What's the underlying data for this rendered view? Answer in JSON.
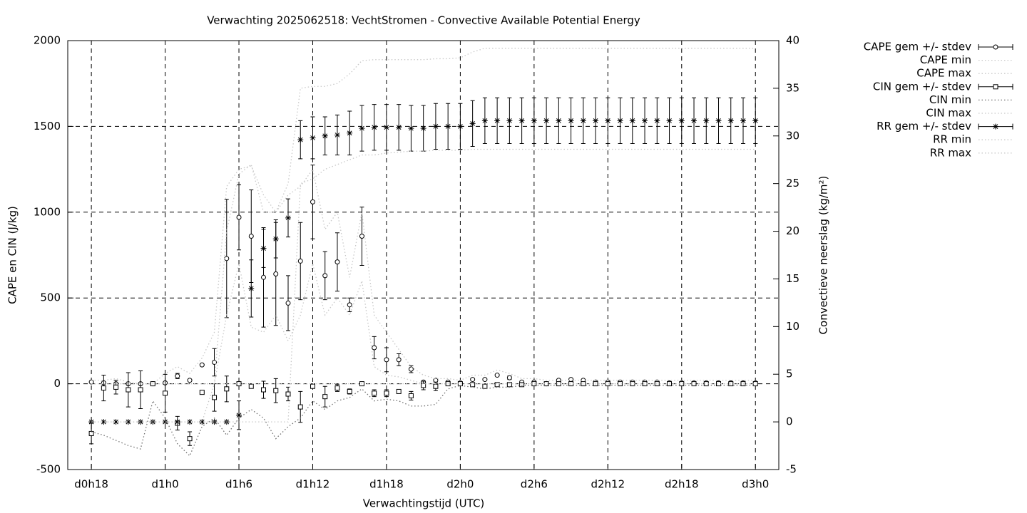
{
  "chart_data": {
    "type": "errorbar",
    "title": "Verwachting 2025062518: VechtStromen - Convective Available Potential Energy",
    "xlabel": "Verwachtingstijd (UTC)",
    "ylabel": "CAPE en CIN (J/kg)",
    "y2label": "Convectieve neerslag (kg/m²)",
    "x": [
      18,
      19,
      20,
      21,
      22,
      23,
      24,
      25,
      26,
      27,
      28,
      29,
      30,
      31,
      32,
      33,
      34,
      35,
      36,
      37,
      38,
      39,
      40,
      41,
      42,
      43,
      44,
      45,
      46,
      47,
      48,
      49,
      50,
      51,
      52,
      53,
      54,
      55,
      56,
      57,
      58,
      59,
      60,
      61,
      62,
      63,
      64,
      65,
      66,
      67,
      68,
      69,
      70,
      71,
      72
    ],
    "xlim": [
      16.08,
      73.9
    ],
    "xticks": [
      {
        "value": 18,
        "label": "d0h18"
      },
      {
        "value": 24,
        "label": "d1h0"
      },
      {
        "value": 30,
        "label": "d1h6"
      },
      {
        "value": 36,
        "label": "d1h12"
      },
      {
        "value": 42,
        "label": "d1h18"
      },
      {
        "value": 48,
        "label": "d2h0"
      },
      {
        "value": 54,
        "label": "d2h6"
      },
      {
        "value": 60,
        "label": "d2h12"
      },
      {
        "value": 66,
        "label": "d2h18"
      },
      {
        "value": 72,
        "label": "d3h0"
      }
    ],
    "ylim": [
      -500,
      2000
    ],
    "yticks": [
      -500,
      0,
      500,
      1000,
      1500,
      2000
    ],
    "y2lim": [
      -5,
      40
    ],
    "y2ticks": [
      -5,
      0,
      5,
      10,
      15,
      20,
      25,
      30,
      35,
      40
    ],
    "grid": true,
    "legend": "top-right",
    "series": [
      {
        "name": "CAPE gem +/- stdev",
        "style": "circle",
        "color": "#000000",
        "values": [
          10,
          5,
          0,
          0,
          0,
          0,
          5,
          45,
          20,
          110,
          125,
          730,
          970,
          860,
          620,
          640,
          470,
          715,
          1060,
          630,
          710,
          460,
          860,
          210,
          140,
          140,
          85,
          10,
          20,
          10,
          5,
          25,
          25,
          50,
          35,
          10,
          10,
          0,
          20,
          25,
          20,
          10,
          10,
          10,
          10,
          10,
          10,
          5,
          5,
          5,
          5,
          5,
          5,
          5,
          5
        ],
        "errors": [
          5,
          5,
          5,
          5,
          5,
          5,
          5,
          15,
          5,
          5,
          80,
          345,
          190,
          270,
          290,
          300,
          160,
          225,
          215,
          140,
          170,
          40,
          170,
          65,
          70,
          35,
          20,
          5,
          5,
          5,
          5,
          5,
          5,
          5,
          10,
          5,
          5,
          5,
          5,
          5,
          5,
          5,
          5,
          5,
          5,
          5,
          5,
          5,
          5,
          5,
          5,
          5,
          5,
          5,
          5
        ]
      },
      {
        "name": "CAPE min",
        "style": "dotted",
        "color": "#c8c8c8",
        "values": [
          0,
          0,
          0,
          0,
          0,
          0,
          0,
          0,
          0,
          0,
          0,
          400,
          700,
          330,
          300,
          400,
          250,
          400,
          700,
          400,
          500,
          400,
          600,
          100,
          50,
          40,
          20,
          0,
          0,
          0,
          0,
          0,
          0,
          0,
          0,
          0,
          0,
          0,
          0,
          0,
          0,
          0,
          0,
          0,
          0,
          0,
          0,
          0,
          0,
          0,
          0,
          0,
          0,
          0,
          0
        ]
      },
      {
        "name": "CAPE max",
        "style": "dotted",
        "color": "#c8c8c8",
        "values": [
          20,
          20,
          30,
          10,
          0,
          0,
          60,
          100,
          60,
          150,
          300,
          1150,
          1250,
          1270,
          1100,
          1000,
          1100,
          1150,
          1250,
          900,
          1000,
          620,
          1000,
          400,
          300,
          200,
          100,
          50,
          30,
          30,
          20,
          50,
          50,
          80,
          60,
          30,
          30,
          20,
          20,
          20,
          20,
          20,
          20,
          20,
          20,
          20,
          20,
          20,
          20,
          20,
          20,
          20,
          20,
          20,
          20
        ]
      },
      {
        "name": "CIN gem +/- stdev",
        "style": "square",
        "color": "#000000",
        "values": [
          -290,
          -25,
          -20,
          -35,
          -35,
          0,
          -55,
          -230,
          -320,
          -50,
          -80,
          -30,
          0,
          -15,
          -35,
          -40,
          -60,
          -135,
          -15,
          -75,
          -25,
          -45,
          0,
          -55,
          -55,
          -45,
          -70,
          -10,
          -15,
          0,
          0,
          -5,
          -15,
          -5,
          -5,
          -5,
          0,
          0,
          0,
          0,
          0,
          0,
          0,
          0,
          0,
          0,
          0,
          0,
          0,
          0,
          0,
          0,
          0,
          0,
          0
        ],
        "errors": [
          60,
          75,
          40,
          100,
          110,
          5,
          110,
          40,
          40,
          5,
          80,
          75,
          5,
          5,
          50,
          70,
          40,
          90,
          10,
          60,
          20,
          15,
          5,
          20,
          20,
          10,
          25,
          25,
          25,
          5,
          5,
          5,
          5,
          5,
          5,
          5,
          5,
          5,
          5,
          5,
          5,
          5,
          5,
          5,
          5,
          5,
          5,
          5,
          5,
          5,
          5,
          5,
          5,
          5,
          5
        ]
      },
      {
        "name": "CIN min",
        "style": "dotted",
        "color": "#707070",
        "values": [
          -280,
          -300,
          -330,
          -360,
          -380,
          -100,
          -200,
          -350,
          -420,
          -250,
          -200,
          -300,
          -200,
          -150,
          -200,
          -320,
          -250,
          -200,
          -100,
          -150,
          -100,
          -80,
          -30,
          -100,
          -90,
          -100,
          -130,
          -130,
          -120,
          -30,
          -10,
          -20,
          -30,
          -20,
          -20,
          -10,
          -10,
          -10,
          -10,
          -10,
          -10,
          -10,
          -10,
          -10,
          -10,
          -10,
          -10,
          -10,
          -10,
          -10,
          -10,
          -10,
          -10,
          -10,
          -10
        ]
      },
      {
        "name": "CIN max",
        "style": "dotted",
        "color": "#c8c8c8",
        "values": [
          0,
          0,
          0,
          0,
          0,
          0,
          0,
          0,
          0,
          0,
          0,
          0,
          0,
          0,
          0,
          0,
          0,
          0,
          0,
          0,
          0,
          0,
          0,
          0,
          0,
          0,
          0,
          0,
          0,
          0,
          0,
          0,
          0,
          0,
          0,
          0,
          0,
          0,
          0,
          0,
          0,
          0,
          0,
          0,
          0,
          0,
          0,
          0,
          0,
          0,
          0,
          0,
          0,
          0,
          0
        ]
      },
      {
        "name": "RR gem +/- stdev",
        "style": "star",
        "color": "#000000",
        "axis": "y2",
        "values": [
          0,
          0,
          0,
          0,
          0,
          0,
          0,
          0,
          0,
          0,
          0,
          0,
          0.7,
          14,
          18.2,
          19.2,
          21.4,
          29.6,
          29.8,
          30,
          30.1,
          30.3,
          30.8,
          30.9,
          30.9,
          30.9,
          30.8,
          30.8,
          31,
          31,
          31,
          31.3,
          31.6,
          31.6,
          31.6,
          31.6,
          31.6,
          31.6,
          31.6,
          31.6,
          31.6,
          31.6,
          31.6,
          31.6,
          31.6,
          31.6,
          31.6,
          31.6,
          31.6,
          31.6,
          31.6,
          31.6,
          31.6,
          31.6,
          31.6
        ],
        "errors": [
          0,
          0,
          0,
          0,
          0,
          0,
          0,
          0,
          0,
          0,
          0,
          0,
          1.5,
          3,
          2,
          2,
          2,
          2,
          2.2,
          2,
          2.1,
          2.3,
          2.4,
          2.4,
          2.4,
          2.4,
          2.4,
          2.4,
          2.4,
          2.4,
          2.4,
          2.4,
          2.4,
          2.4,
          2.4,
          2.4,
          2.4,
          2.4,
          2.4,
          2.4,
          2.4,
          2.4,
          2.4,
          2.4,
          2.4,
          2.4,
          2.4,
          2.4,
          2.4,
          2.4,
          2.4,
          2.4,
          2.4,
          2.4,
          2.4
        ]
      },
      {
        "name": "RR min",
        "style": "dotted",
        "color": "#c8c8c8",
        "axis": "y2",
        "values": [
          0,
          0,
          0,
          0,
          0,
          0,
          0,
          0,
          0,
          0,
          0,
          0,
          0,
          0,
          0,
          0,
          0,
          25,
          25.5,
          26.5,
          27,
          27.5,
          28,
          28,
          28.2,
          28.3,
          28.4,
          28.4,
          28.5,
          28.5,
          28.5,
          28.6,
          28.6,
          28.6,
          28.6,
          28.6,
          28.6,
          28.6,
          28.6,
          28.6,
          28.6,
          28.6,
          28.6,
          28.6,
          28.6,
          28.6,
          28.6,
          28.6,
          28.6,
          28.6,
          28.6,
          28.6,
          28.6,
          28.6,
          28.6
        ]
      },
      {
        "name": "RR max",
        "style": "dotted",
        "color": "#c8c8c8",
        "axis": "y2",
        "values": [
          0,
          0,
          0,
          0,
          0,
          0,
          0,
          0,
          0,
          0,
          4,
          20,
          26,
          27,
          22,
          22,
          25,
          35,
          35.2,
          35.2,
          35.5,
          36.5,
          37.9,
          38,
          38,
          38,
          38,
          38,
          38.1,
          38.1,
          38.2,
          38.8,
          39.2,
          39.2,
          39.2,
          39.2,
          39.2,
          39.2,
          39.2,
          39.2,
          39.2,
          39.2,
          39.2,
          39.2,
          39.2,
          39.2,
          39.2,
          39.2,
          39.2,
          39.2,
          39.2,
          39.2,
          39.2,
          39.2,
          39.2
        ]
      }
    ]
  }
}
